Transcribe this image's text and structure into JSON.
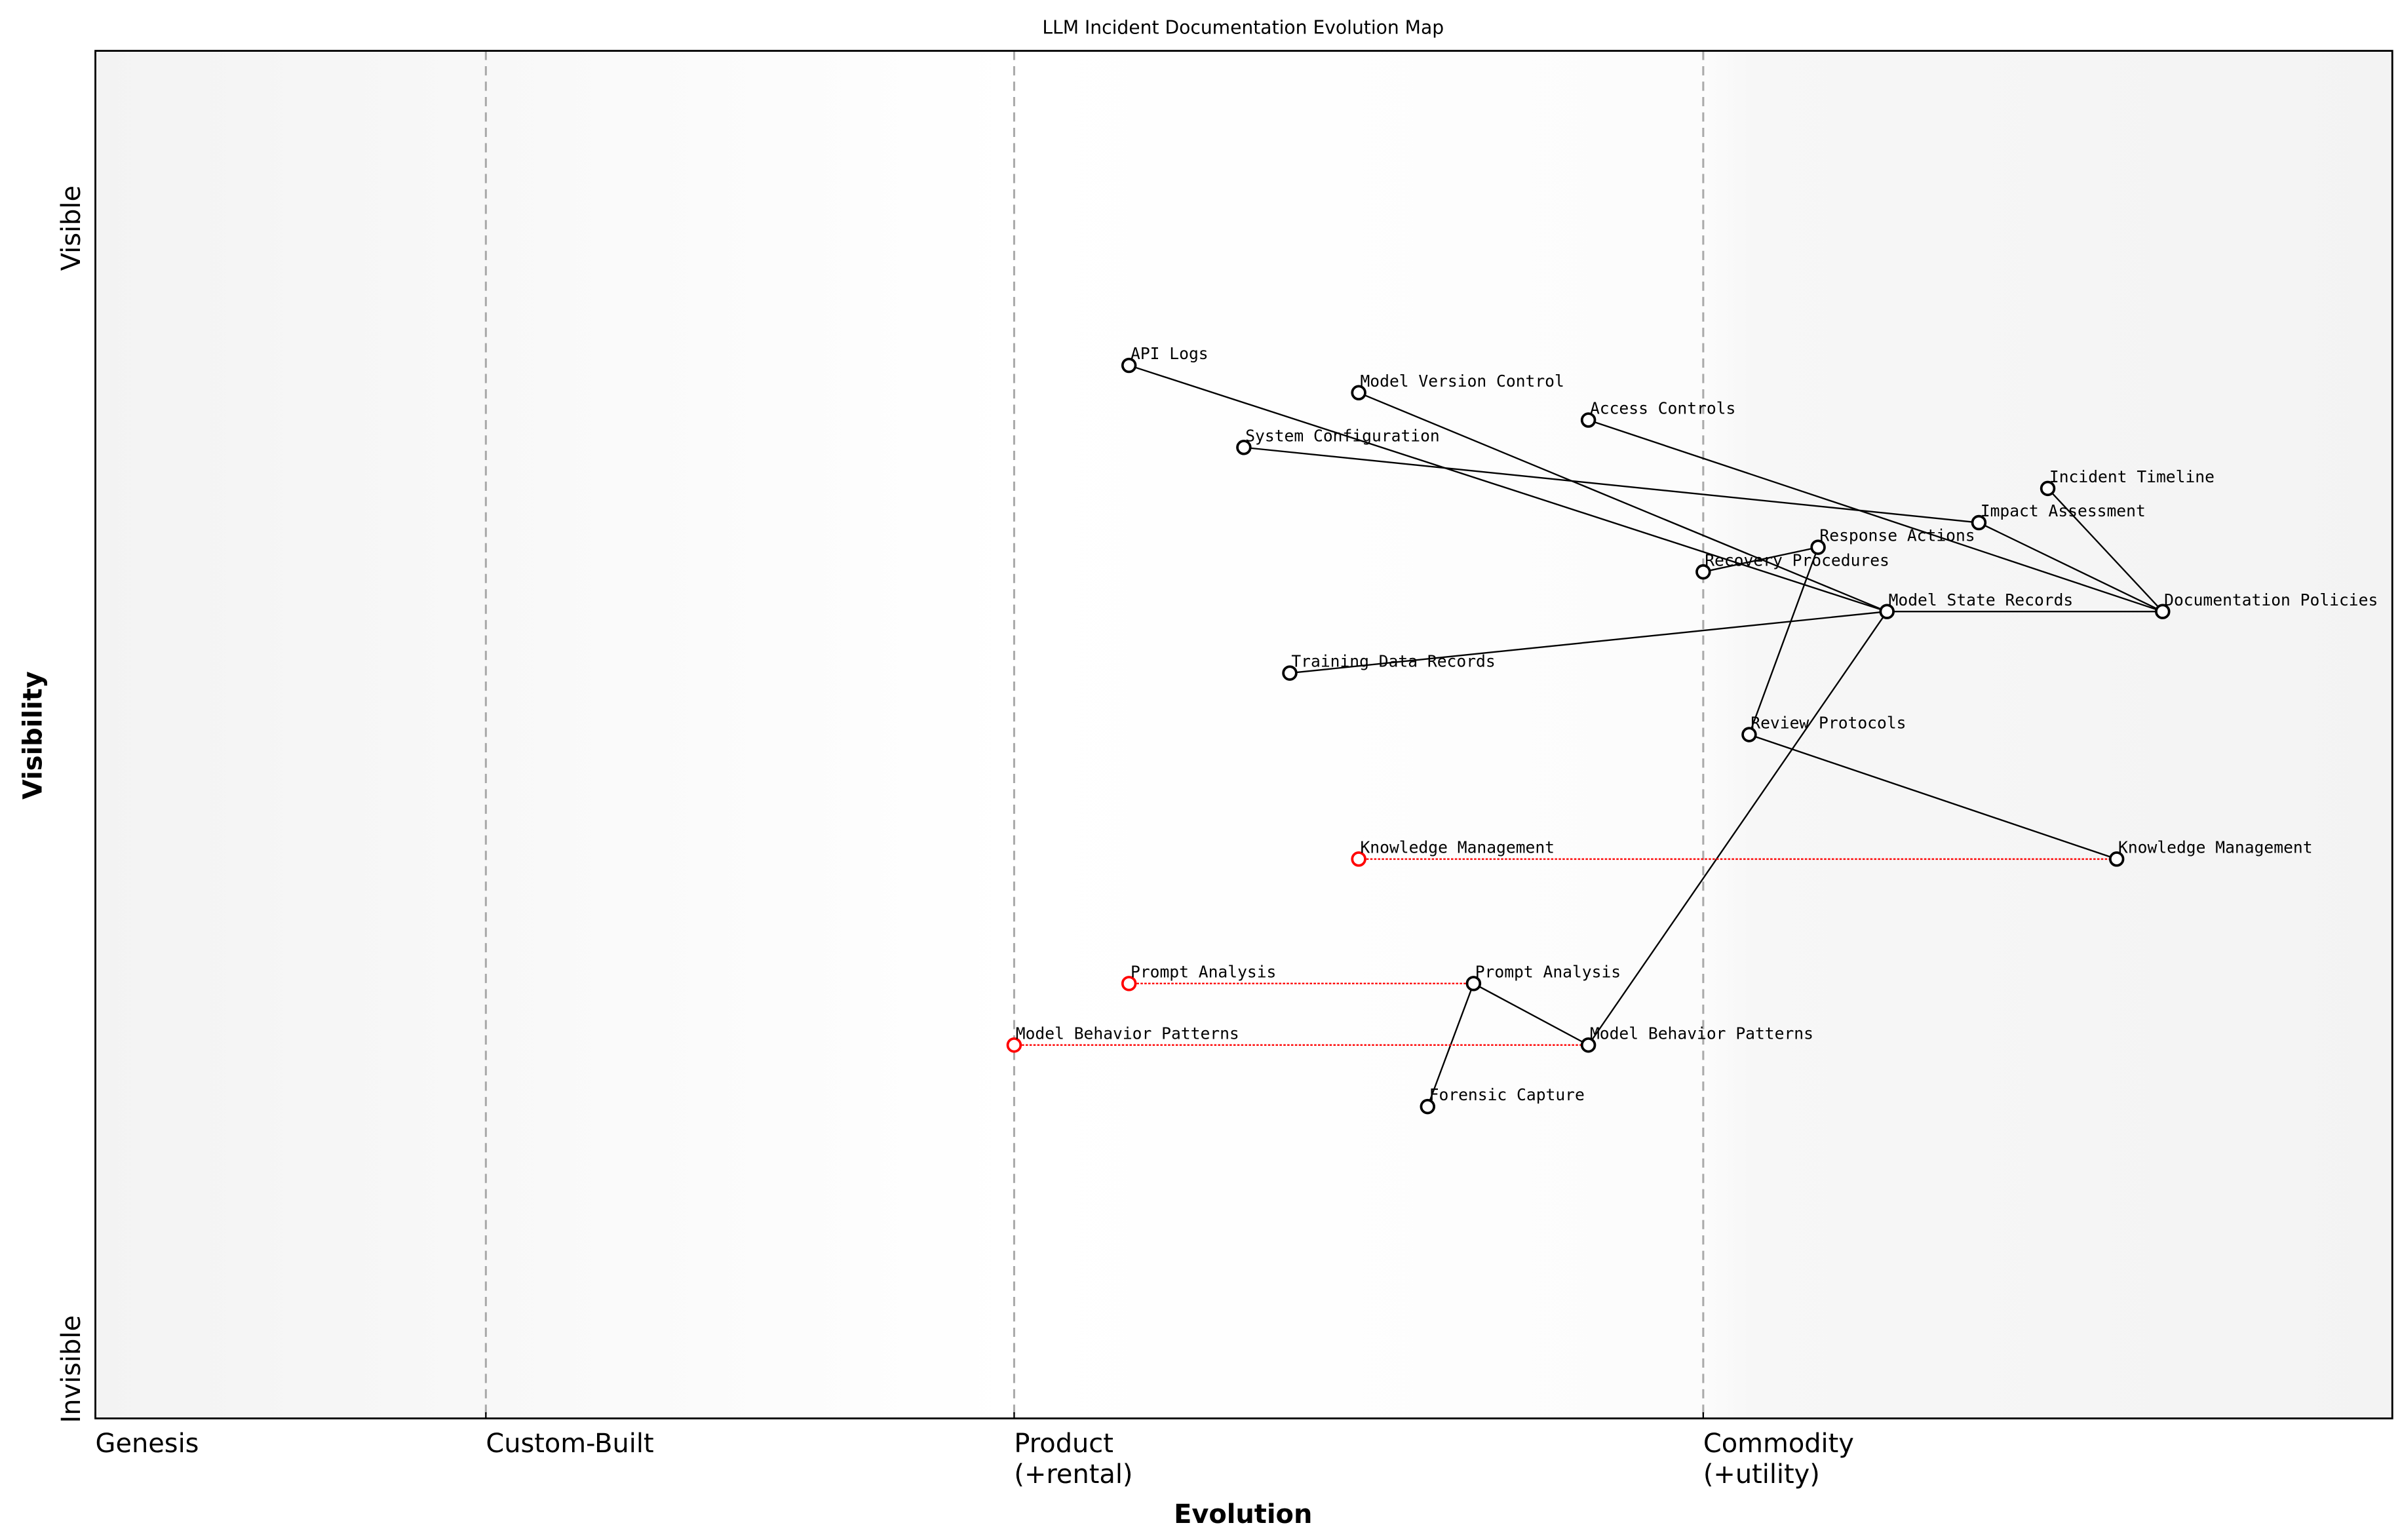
{
  "chart_data": {
    "type": "wardley-map",
    "title": "LLM Incident Documentation Evolution Map",
    "xlabel": "Evolution",
    "ylabel": "Visibility",
    "xlim": [
      0,
      1
    ],
    "ylim": [
      0,
      1
    ],
    "x_stages": [
      {
        "label": "Genesis",
        "x": 0.0
      },
      {
        "label": "Custom-Built",
        "x": 0.17
      },
      {
        "label": "Product\n(+rental)",
        "x": 0.4
      },
      {
        "label": "Commodity\n(+utility)",
        "x": 0.7
      }
    ],
    "y_labels": {
      "top": "Visible",
      "bottom": "Invisible"
    },
    "grid": false,
    "colors": {
      "node": "#000000",
      "evolved_from": "#ff0000",
      "stage_line": "#aaaaaa",
      "band": "#f4f4f4"
    },
    "components": [
      {
        "name": "API Logs",
        "x": 0.45,
        "y": 0.77
      },
      {
        "name": "Model Version Control",
        "x": 0.55,
        "y": 0.75
      },
      {
        "name": "Access Controls",
        "x": 0.65,
        "y": 0.73
      },
      {
        "name": "System Configuration",
        "x": 0.5,
        "y": 0.71
      },
      {
        "name": "Incident Timeline",
        "x": 0.85,
        "y": 0.68
      },
      {
        "name": "Impact Assessment",
        "x": 0.82,
        "y": 0.655
      },
      {
        "name": "Response Actions",
        "x": 0.75,
        "y": 0.637
      },
      {
        "name": "Recovery Procedures",
        "x": 0.7,
        "y": 0.619
      },
      {
        "name": "Model State Records",
        "x": 0.78,
        "y": 0.59
      },
      {
        "name": "Documentation Policies",
        "x": 0.9,
        "y": 0.59
      },
      {
        "name": "Training Data Records",
        "x": 0.52,
        "y": 0.545
      },
      {
        "name": "Review Protocols",
        "x": 0.72,
        "y": 0.5
      },
      {
        "name": "Knowledge Management",
        "x": 0.88,
        "y": 0.409
      },
      {
        "name": "Prompt Analysis",
        "x": 0.6,
        "y": 0.318
      },
      {
        "name": "Model Behavior Patterns",
        "x": 0.65,
        "y": 0.273
      },
      {
        "name": "Forensic Capture",
        "x": 0.58,
        "y": 0.228
      }
    ],
    "evolved_from": [
      {
        "name": "Knowledge Management",
        "x": 0.55,
        "y": 0.409,
        "to": "Knowledge Management"
      },
      {
        "name": "Prompt Analysis",
        "x": 0.45,
        "y": 0.318,
        "to": "Prompt Analysis"
      },
      {
        "name": "Model Behavior Patterns",
        "x": 0.4,
        "y": 0.273,
        "to": "Model Behavior Patterns"
      }
    ],
    "links": [
      [
        "API Logs",
        "Model State Records"
      ],
      [
        "Model Version Control",
        "Model State Records"
      ],
      [
        "Access Controls",
        "Documentation Policies"
      ],
      [
        "System Configuration",
        "Impact Assessment"
      ],
      [
        "Incident Timeline",
        "Documentation Policies"
      ],
      [
        "Impact Assessment",
        "Documentation Policies"
      ],
      [
        "Recovery Procedures",
        "Response Actions"
      ],
      [
        "Response Actions",
        "Review Protocols"
      ],
      [
        "Model State Records",
        "Documentation Policies"
      ],
      [
        "Training Data Records",
        "Model State Records"
      ],
      [
        "Model State Records",
        "Model Behavior Patterns"
      ],
      [
        "Review Protocols",
        "Knowledge Management"
      ],
      [
        "Prompt Analysis",
        "Model Behavior Patterns"
      ],
      [
        "Prompt Analysis",
        "Forensic Capture"
      ]
    ]
  }
}
